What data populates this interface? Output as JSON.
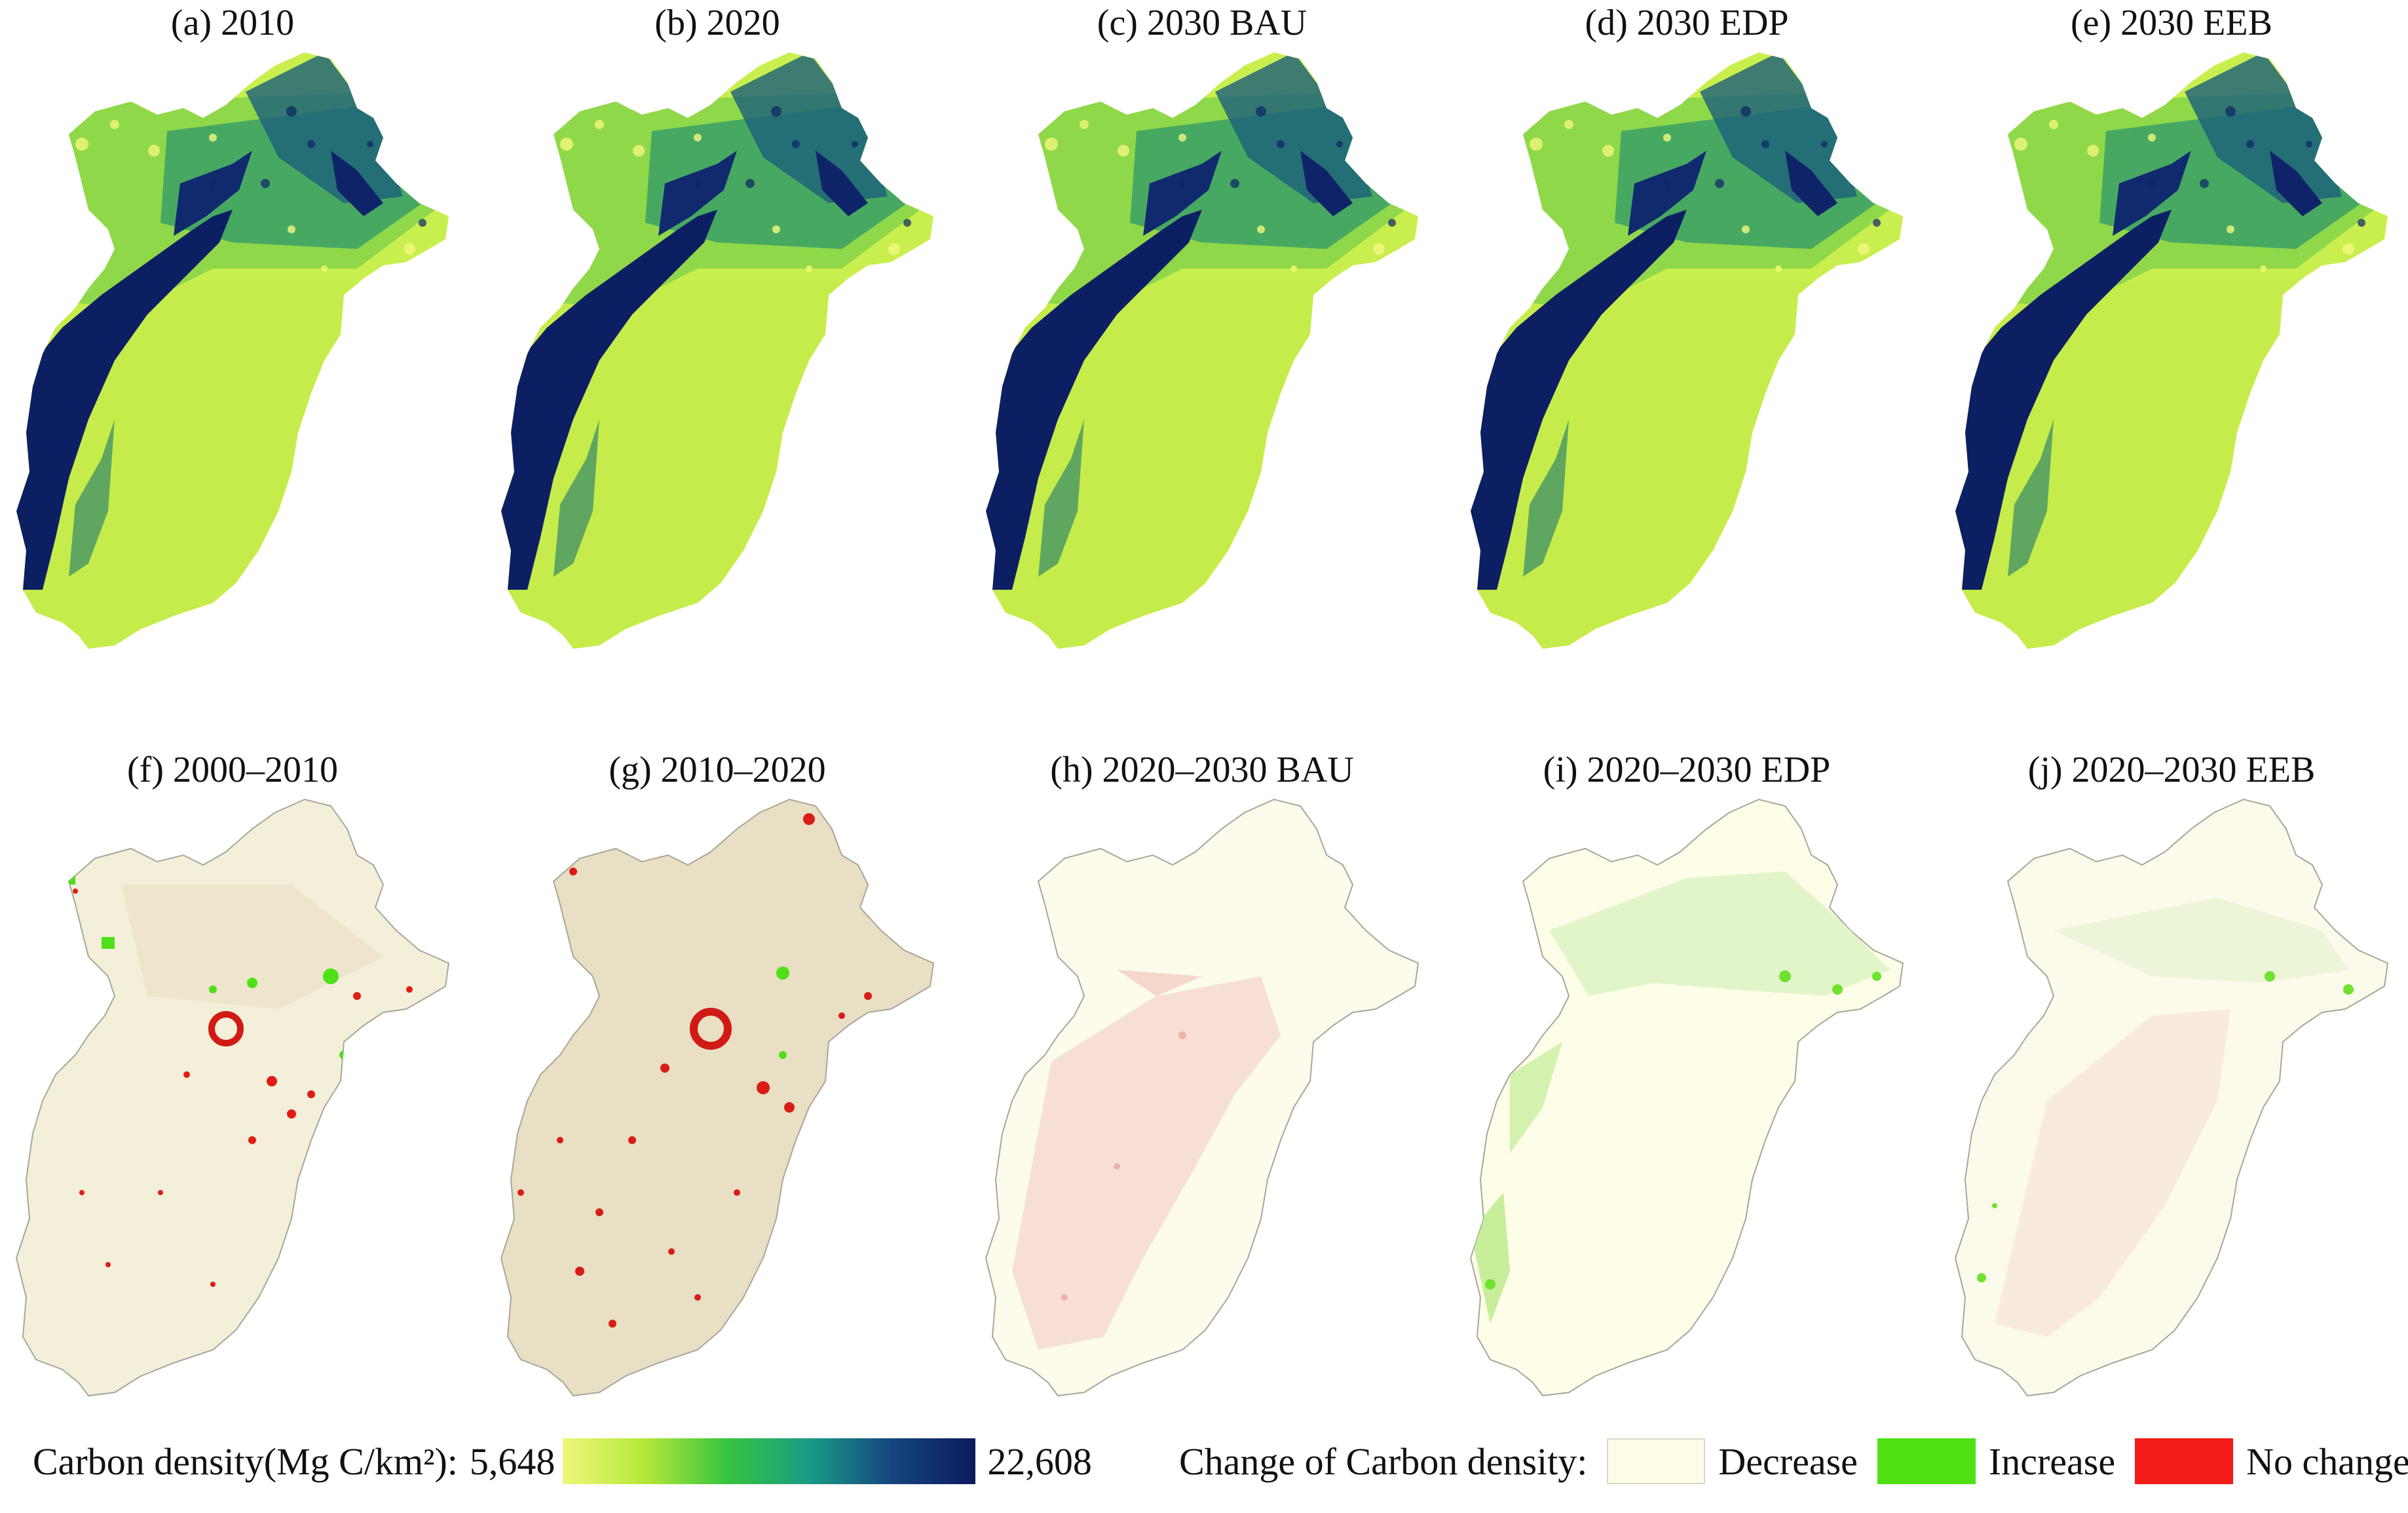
{
  "panels": [
    {
      "id": "a",
      "title": "(a) 2010",
      "type": "density"
    },
    {
      "id": "b",
      "title": "(b) 2020",
      "type": "density"
    },
    {
      "id": "c",
      "title": "(c) 2030 BAU",
      "type": "density"
    },
    {
      "id": "d",
      "title": "(d) 2030 EDP",
      "type": "density"
    },
    {
      "id": "e",
      "title": "(e) 2030 EEB",
      "type": "density"
    },
    {
      "id": "f",
      "title": "(f) 2000–2010",
      "type": "change"
    },
    {
      "id": "g",
      "title": "(g) 2010–2020",
      "type": "change"
    },
    {
      "id": "h",
      "title": "(h) 2020–2030 BAU",
      "type": "change"
    },
    {
      "id": "i",
      "title": "(i) 2020–2030 EDP",
      "type": "change"
    },
    {
      "id": "j",
      "title": "(j) 2020–2030 EEB",
      "type": "change"
    }
  ],
  "legend_density": {
    "label": "Carbon density(Mg C/km²):",
    "min": "5,648",
    "max": "22,608",
    "colors": [
      "#eef77a",
      "#b5e83a",
      "#35c43f",
      "#1a9a86",
      "#14447e",
      "#0d1a5e"
    ]
  },
  "legend_change": {
    "label": "Change of Carbon density:",
    "items": [
      {
        "label": "Decrease",
        "color": "#fdfde8"
      },
      {
        "label": "Increase",
        "color": "#4ee013"
      },
      {
        "label": "No change",
        "color": "#f21b17"
      }
    ]
  }
}
